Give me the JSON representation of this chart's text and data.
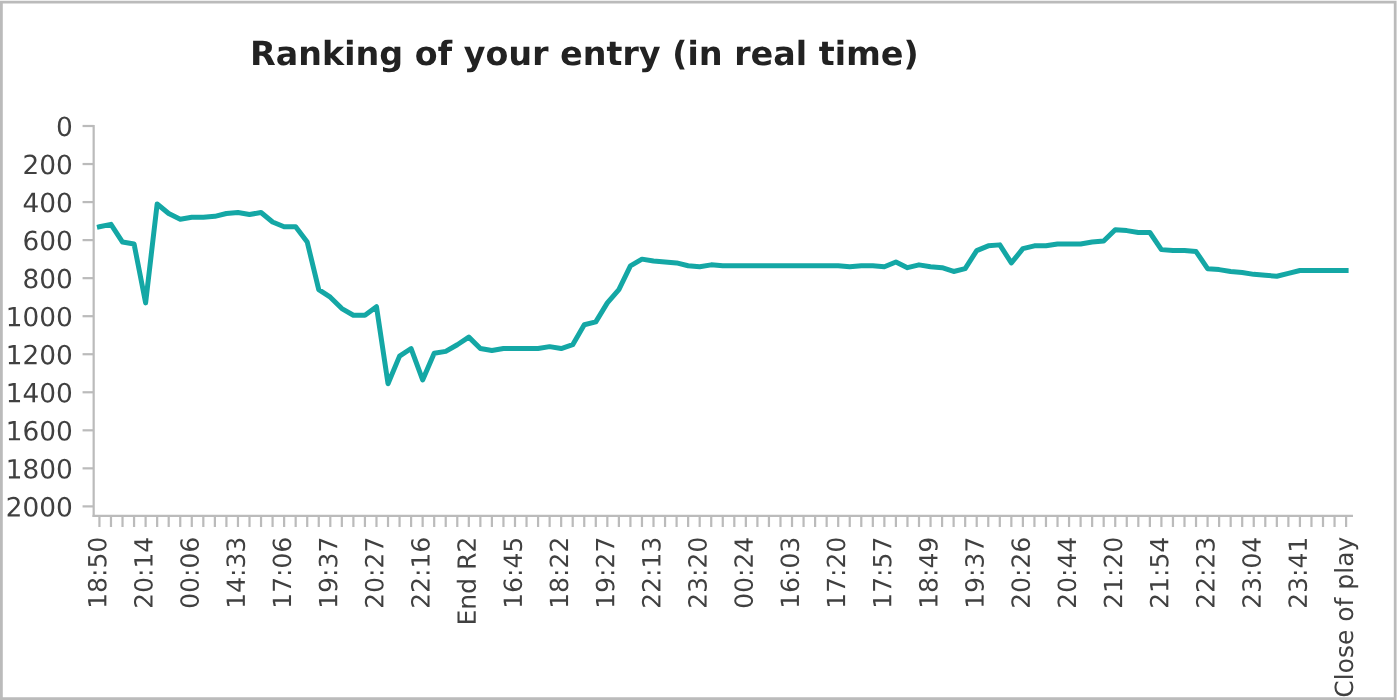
{
  "chart_data": {
    "type": "line",
    "title": "Ranking of your entry (in real time)",
    "categories": [
      "18:50",
      null,
      null,
      null,
      "20:14",
      null,
      null,
      null,
      "00:06",
      null,
      null,
      null,
      "14:33",
      null,
      null,
      null,
      "17:06",
      null,
      null,
      null,
      "19:37",
      null,
      null,
      null,
      "20:27",
      null,
      null,
      null,
      "22:16",
      null,
      null,
      null,
      "End R2",
      null,
      null,
      null,
      "16:45",
      null,
      null,
      null,
      "18:22",
      null,
      null,
      null,
      "19:27",
      null,
      null,
      null,
      "22:13",
      null,
      null,
      null,
      "23:20",
      null,
      null,
      null,
      "00:24",
      null,
      null,
      null,
      "16:03",
      null,
      null,
      null,
      "17:20",
      null,
      null,
      null,
      "17:57",
      null,
      null,
      null,
      "18:49",
      null,
      null,
      null,
      "19:37",
      null,
      null,
      null,
      "20:26",
      null,
      null,
      null,
      "20:44",
      null,
      null,
      null,
      "21:20",
      null,
      null,
      null,
      "21:54",
      null,
      null,
      null,
      "22:23",
      null,
      null,
      null,
      "23:04",
      null,
      null,
      null,
      "23:41",
      null,
      null,
      null,
      "Close of play"
    ],
    "series": [
      {
        "color": "#14a7a5",
        "values": [
          530,
          517,
          610,
          620,
          930,
          410,
          460,
          490,
          480,
          480,
          475,
          460,
          455,
          465,
          455,
          505,
          530,
          530,
          610,
          860,
          900,
          960,
          995,
          995,
          950,
          1355,
          1210,
          1170,
          1335,
          1195,
          1185,
          1150,
          1110,
          1170,
          1180,
          1170,
          1170,
          1170,
          1170,
          1160,
          1170,
          1150,
          1045,
          1030,
          930,
          860,
          735,
          700,
          710,
          715,
          720,
          735,
          740,
          730,
          735,
          735,
          735,
          735,
          735,
          735,
          735,
          735,
          735,
          735,
          735,
          740,
          735,
          735,
          740,
          715,
          745,
          730,
          740,
          745,
          765,
          750,
          655,
          630,
          625,
          720,
          645,
          630,
          630,
          620,
          620,
          620,
          610,
          605,
          545,
          550,
          560,
          560,
          650,
          655,
          655,
          660,
          750,
          755,
          765,
          770,
          780,
          785,
          790,
          775,
          760,
          760,
          760,
          760,
          760
        ]
      }
    ],
    "ylim": [
      2050,
      0
    ],
    "yticks": [
      0,
      200,
      400,
      600,
      800,
      1000,
      1200,
      1400,
      1600,
      1800,
      2000
    ],
    "grid": false,
    "legend": false,
    "marker": "none",
    "line_style": "solid"
  }
}
